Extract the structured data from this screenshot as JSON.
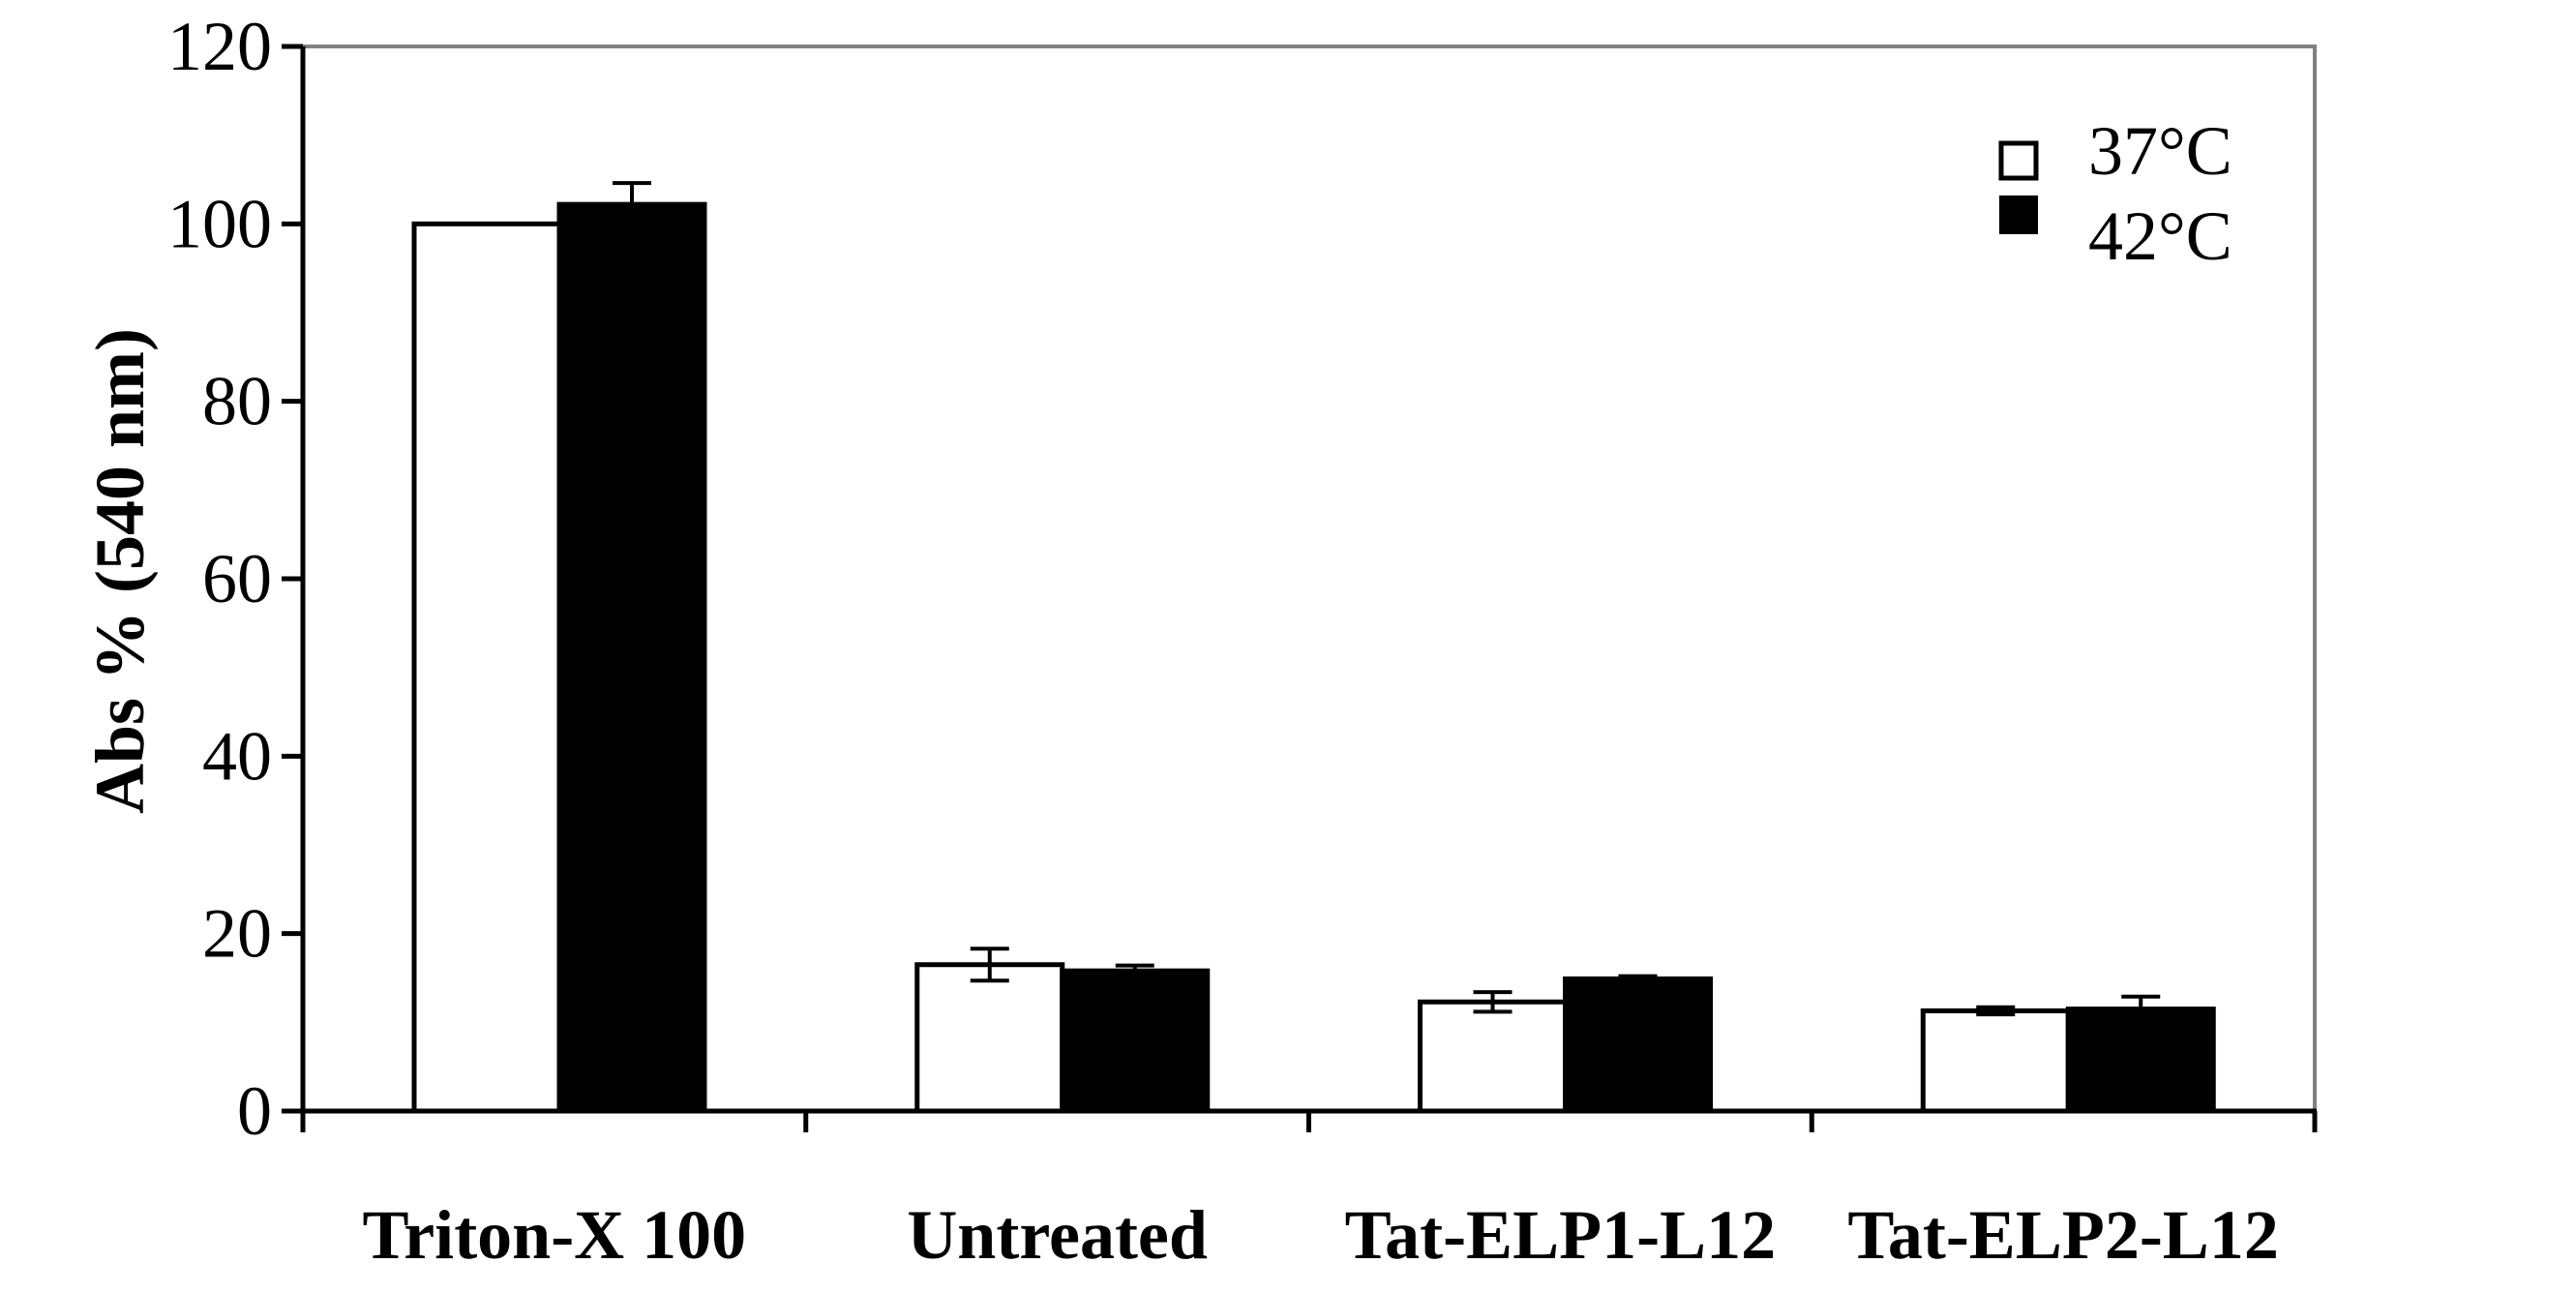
{
  "chart_data": {
    "type": "bar",
    "title": "",
    "xlabel": "",
    "ylabel": "Abs % (540 nm)",
    "ylim": [
      0,
      120
    ],
    "yticks": [
      0,
      20,
      40,
      60,
      80,
      100,
      120
    ],
    "categories": [
      "Triton-X 100",
      "Untreated",
      "Tat-ELP1-L12",
      "Tat-ELP2-L12"
    ],
    "series": [
      {
        "name": "37°C",
        "values": [
          100,
          16.5,
          12.3,
          11.3
        ],
        "errors": [
          0,
          1.8,
          1.1,
          0.4
        ],
        "fill": "#ffffff"
      },
      {
        "name": "42°C",
        "values": [
          102.2,
          15.8,
          14.9,
          11.5
        ],
        "errors": [
          2.4,
          0.6,
          0.3,
          1.4
        ],
        "fill": "#000000"
      }
    ],
    "grid": false,
    "legend": "top-right",
    "frame_color": "#808080"
  }
}
